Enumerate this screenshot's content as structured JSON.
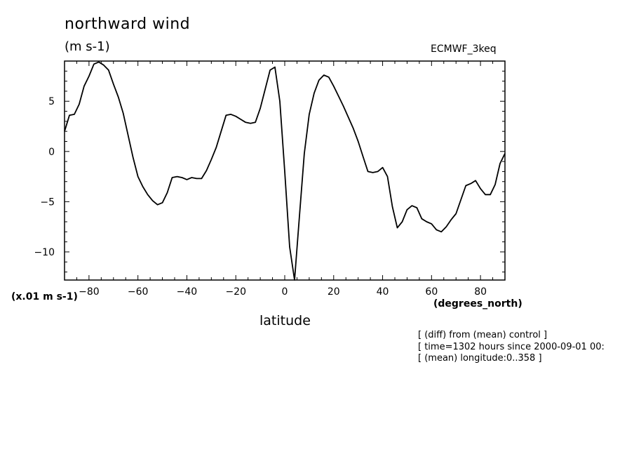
{
  "chart_data": {
    "type": "line",
    "title": "northward wind",
    "units_label": "(m s-1)",
    "dataset_label": "ECMWF_3keq",
    "scale_note": "(x.01 m s-1)",
    "xlabel": "latitude",
    "xunits": "(degrees_north)",
    "xlim": [
      -90,
      90
    ],
    "ylim": [
      -12.8,
      9
    ],
    "xticks": [
      -80,
      -60,
      -40,
      -20,
      0,
      20,
      40,
      60,
      80
    ],
    "yticks": [
      5,
      0,
      -5,
      -10
    ],
    "grid": false,
    "series": [
      {
        "x": [
          -90,
          -88,
          -86,
          -84,
          -82,
          -80,
          -78,
          -76,
          -74,
          -72,
          -70,
          -68,
          -66,
          -64,
          -62,
          -60,
          -58,
          -56,
          -54,
          -52,
          -50,
          -48,
          -46,
          -44,
          -42,
          -40,
          -38,
          -36,
          -34,
          -32,
          -30,
          -28,
          -26,
          -24,
          -22,
          -20,
          -18,
          -16,
          -14,
          -12,
          -10,
          -8,
          -6,
          -4,
          -2,
          0,
          2,
          4,
          6,
          8,
          10,
          12,
          14,
          16,
          18,
          20,
          22,
          24,
          26,
          28,
          30,
          32,
          34,
          36,
          38,
          40,
          42,
          44,
          46,
          48,
          50,
          52,
          54,
          56,
          58,
          60,
          62,
          64,
          66,
          68,
          70,
          72,
          74,
          76,
          78,
          80,
          82,
          84,
          86,
          88,
          90
        ],
        "y": [
          2.0,
          3.6,
          3.7,
          4.7,
          6.5,
          7.5,
          8.7,
          8.9,
          8.6,
          8.1,
          6.7,
          5.4,
          3.8,
          1.6,
          -0.6,
          -2.5,
          -3.5,
          -4.3,
          -4.9,
          -5.3,
          -5.1,
          -4.1,
          -2.6,
          -2.5,
          -2.6,
          -2.8,
          -2.6,
          -2.7,
          -2.7,
          -1.9,
          -0.8,
          0.4,
          2.0,
          3.6,
          3.7,
          3.5,
          3.2,
          2.9,
          2.8,
          2.9,
          4.3,
          6.2,
          8.1,
          8.4,
          5.0,
          -2.0,
          -9.5,
          -12.8,
          -6.5,
          -0.2,
          3.7,
          5.8,
          7.1,
          7.6,
          7.4,
          6.5,
          5.5,
          4.5,
          3.4,
          2.3,
          1.0,
          -0.5,
          -2.0,
          -2.1,
          -2.0,
          -1.6,
          -2.5,
          -5.5,
          -7.6,
          -7.0,
          -5.8,
          -5.4,
          -5.6,
          -6.7,
          -7.0,
          -7.2,
          -7.8,
          -8.0,
          -7.5,
          -6.8,
          -6.2,
          -4.8,
          -3.4,
          -3.2,
          -2.9,
          -3.7,
          -4.3,
          -4.3,
          -3.3,
          -1.2,
          -0.2
        ]
      }
    ]
  },
  "notes": [
    "[ (diff) from (mean) control ]",
    "[ time=1302 hours since 2000-09-01 00:",
    "[ (mean) longitude:0..358 ]"
  ]
}
